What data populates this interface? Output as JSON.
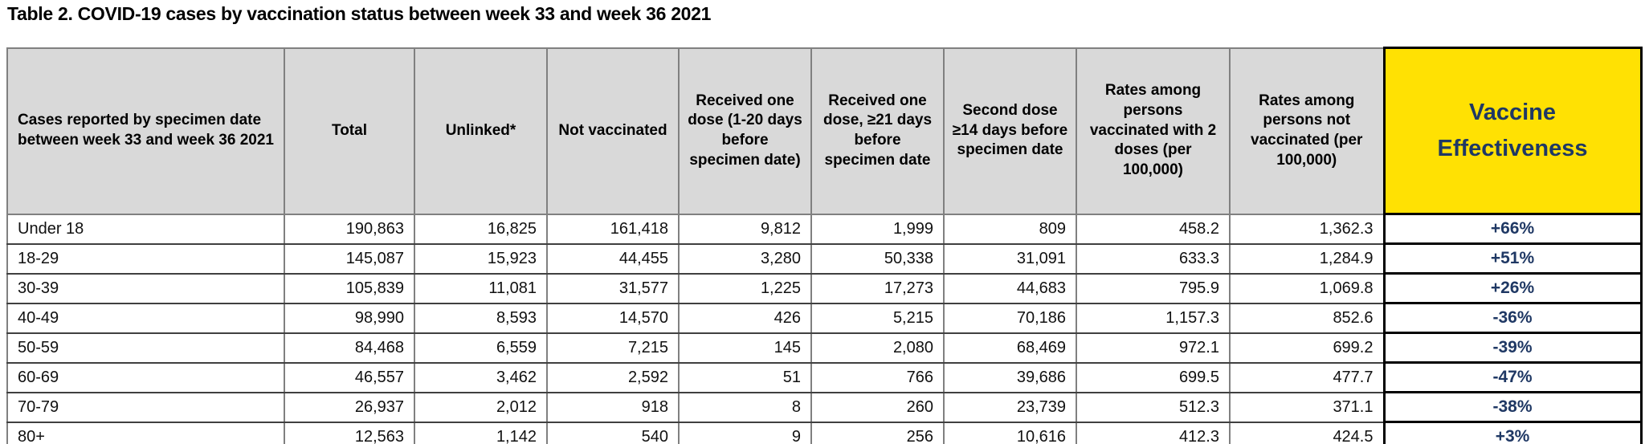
{
  "title": "Table 2. COVID-19 cases by vaccination status between week 33 and week 36 2021",
  "colors": {
    "header_bg": "#d9d9d9",
    "ve_header_bg": "#ffe103",
    "ve_text": "#1f3864",
    "body_text": "#111111"
  },
  "table": {
    "columns": [
      "Cases reported by specimen date between week 33 and week 36 2021",
      "Total",
      "Unlinked*",
      "Not vaccinated",
      "Received one dose (1-20 days before specimen date)",
      "Received one dose, ≥21 days before specimen date",
      "Second dose ≥14 days before specimen date",
      "Rates among persons vaccinated with 2 doses (per 100,000)",
      "Rates among persons not vaccinated (per 100,000)",
      "Vaccine Effectiveness"
    ],
    "rows": [
      [
        "Under 18",
        "190,863",
        "16,825",
        "161,418",
        "9,812",
        "1,999",
        "809",
        "458.2",
        "1,362.3",
        "+66%"
      ],
      [
        "18-29",
        "145,087",
        "15,923",
        "44,455",
        "3,280",
        "50,338",
        "31,091",
        "633.3",
        "1,284.9",
        "+51%"
      ],
      [
        "30-39",
        "105,839",
        "11,081",
        "31,577",
        "1,225",
        "17,273",
        "44,683",
        "795.9",
        "1,069.8",
        "+26%"
      ],
      [
        "40-49",
        "98,990",
        "8,593",
        "14,570",
        "426",
        "5,215",
        "70,186",
        "1,157.3",
        "852.6",
        "-36%"
      ],
      [
        "50-59",
        "84,468",
        "6,559",
        "7,215",
        "145",
        "2,080",
        "68,469",
        "972.1",
        "699.2",
        "-39%"
      ],
      [
        "60-69",
        "46,557",
        "3,462",
        "2,592",
        "51",
        "766",
        "39,686",
        "699.5",
        "477.7",
        "-47%"
      ],
      [
        "70-79",
        "26,937",
        "2,012",
        "918",
        "8",
        "260",
        "23,739",
        "512.3",
        "371.1",
        "-38%"
      ],
      [
        "80+",
        "12,563",
        "1,142",
        "540",
        "9",
        "256",
        "10,616",
        "412.3",
        "424.5",
        "+3%"
      ]
    ]
  }
}
